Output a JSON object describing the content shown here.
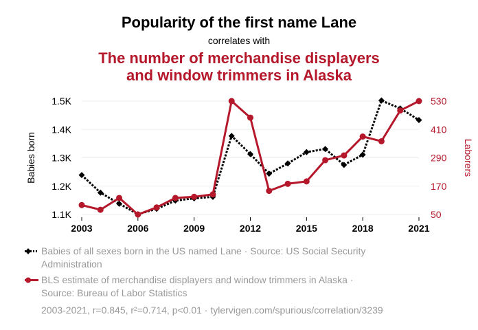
{
  "header": {
    "title": "Popularity of the first name Lane",
    "subtitle": "correlates with",
    "title2_line1": "The number of merchandise displayers",
    "title2_line2": "and window trimmers in Alaska"
  },
  "legend": {
    "series1_line1": "Babies of all sexes born in the US named Lane · Source: US Social Security",
    "series1_line2": "Administration",
    "series2_line1": "BLS estimate of merchandise displayers and window trimmers in Alaska ·",
    "series2_line2": "Source: Bureau of Labor Statistics"
  },
  "footer": "2003-2021, r=0.845, r²=0.714, p<0.01 · tylervigen.com/spurious/correlation/3239",
  "chart_data": {
    "type": "line",
    "x": [
      2003,
      2004,
      2005,
      2006,
      2007,
      2008,
      2009,
      2010,
      2011,
      2012,
      2013,
      2014,
      2015,
      2016,
      2017,
      2018,
      2019,
      2020,
      2021
    ],
    "xticks": [
      "2003",
      "2006",
      "2009",
      "2012",
      "2015",
      "2018",
      "2021"
    ],
    "xlim": [
      2003,
      2021
    ],
    "y_left": {
      "label": "Babies born",
      "ticks": [
        "1.1K",
        "1.2K",
        "1.3K",
        "1.4K",
        "1.5K"
      ],
      "tick_values": [
        1100,
        1200,
        1300,
        1400,
        1500
      ],
      "ylim": [
        1100,
        1500
      ]
    },
    "y_right": {
      "label": "Laborers",
      "ticks": [
        "50",
        "170",
        "290",
        "410",
        "530"
      ],
      "tick_values": [
        50,
        170,
        290,
        410,
        530
      ],
      "ylim": [
        50,
        530
      ]
    },
    "series": [
      {
        "name": "Babies of all sexes born in the US named Lane",
        "axis": "left",
        "style": "dotted",
        "marker": "diamond",
        "color": "#000000",
        "values": [
          1239,
          1177,
          1138,
          1101,
          1120,
          1149,
          1157,
          1162,
          1377,
          1313,
          1244,
          1280,
          1320,
          1331,
          1275,
          1311,
          1502,
          1474,
          1433
        ]
      },
      {
        "name": "BLS estimate of merchandise displayers and window trimmers in Alaska",
        "axis": "right",
        "style": "solid",
        "marker": "circle",
        "color": "#b5172b",
        "values": [
          90,
          70,
          120,
          50,
          80,
          120,
          125,
          135,
          530,
          460,
          150,
          180,
          190,
          280,
          300,
          380,
          360,
          490,
          530
        ]
      }
    ],
    "grid": true
  }
}
